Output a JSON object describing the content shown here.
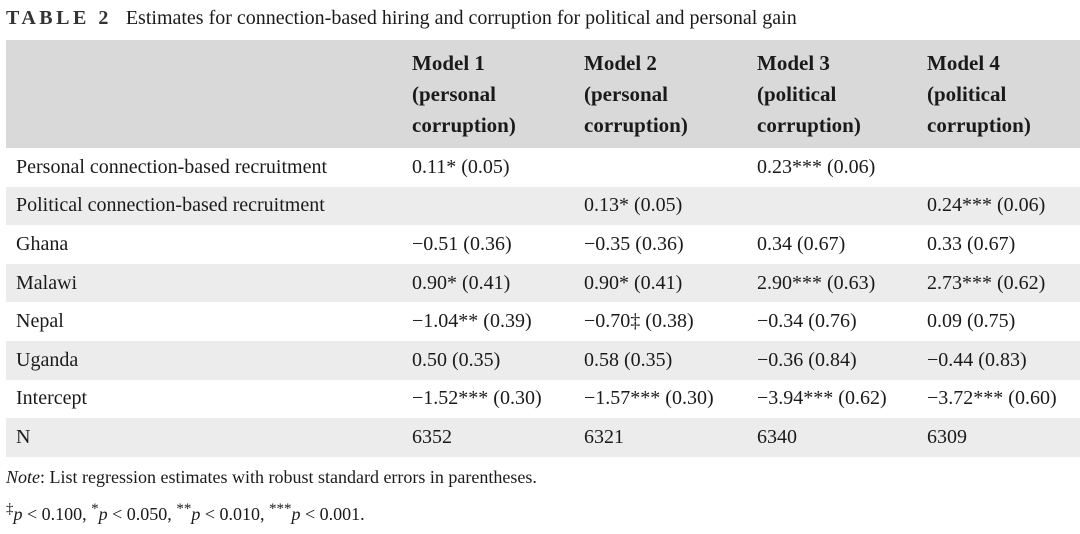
{
  "caption": {
    "label": "TABLE 2",
    "title": "Estimates for connection-based hiring and corruption for political and personal gain"
  },
  "table": {
    "columns": [
      {
        "line1": "Model 1",
        "line2": "(personal",
        "line3": "corruption)"
      },
      {
        "line1": "Model 2",
        "line2": "(personal",
        "line3": "corruption)"
      },
      {
        "line1": "Model 3",
        "line2": "(political",
        "line3": "corruption)"
      },
      {
        "line1": "Model 4",
        "line2": "(political",
        "line3": "corruption)"
      }
    ],
    "rows": [
      {
        "label": "Personal connection-based recruitment",
        "cells": [
          "0.11* (0.05)",
          "",
          "0.23*** (0.06)",
          ""
        ]
      },
      {
        "label": "Political connection-based recruitment",
        "cells": [
          "",
          "0.13* (0.05)",
          "",
          "0.24*** (0.06)"
        ]
      },
      {
        "label": "Ghana",
        "cells": [
          "−0.51 (0.36)",
          "−0.35 (0.36)",
          "0.34 (0.67)",
          "0.33 (0.67)"
        ]
      },
      {
        "label": "Malawi",
        "cells": [
          "0.90* (0.41)",
          "0.90* (0.41)",
          "2.90*** (0.63)",
          "2.73*** (0.62)"
        ]
      },
      {
        "label": "Nepal",
        "cells": [
          "−1.04** (0.39)",
          "−0.70‡ (0.38)",
          "−0.34 (0.76)",
          "0.09 (0.75)"
        ]
      },
      {
        "label": "Uganda",
        "cells": [
          "0.50 (0.35)",
          "0.58 (0.35)",
          "−0.36 (0.84)",
          "−0.44 (0.83)"
        ]
      },
      {
        "label": "Intercept",
        "cells": [
          "−1.52*** (0.30)",
          "−1.57*** (0.30)",
          "−3.94*** (0.62)",
          "−3.72*** (0.60)"
        ]
      },
      {
        "label": "N",
        "cells": [
          "6352",
          "6321",
          "6340",
          "6309"
        ]
      }
    ]
  },
  "notes": {
    "note_lead": "Note",
    "note_text": ": List regression estimates with robust standard errors in parentheses.",
    "sig": {
      "t1_mark": "‡",
      "t1_var": "p",
      "t1_rest": " < 0.100, ",
      "t2_mark": "*",
      "t2_var": "p",
      "t2_rest": " < 0.050, ",
      "t3_mark": "**",
      "t3_var": "p",
      "t3_rest": " < 0.010, ",
      "t4_mark": "***",
      "t4_var": "p",
      "t4_rest": " < 0.001."
    }
  }
}
